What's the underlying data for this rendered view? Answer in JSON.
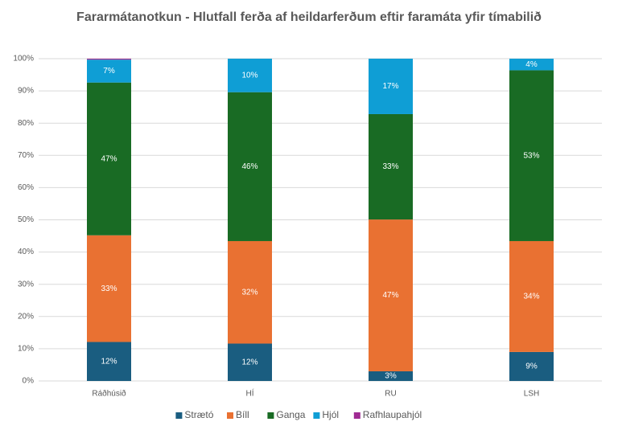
{
  "chart_data": {
    "type": "stacked_bar",
    "title": "Fararmátanotkun - Hlutfall ferða af heildarferðum eftir faramáta yfir tímabilið",
    "categories": [
      "Ráðhúsið",
      "HÍ",
      "RU",
      "LSH"
    ],
    "series": [
      {
        "name": "Strætó",
        "color": "#1a5d80",
        "values": [
          12.1,
          11.6,
          3.0,
          9.0
        ],
        "value_labels": [
          "12%",
          "12%",
          "3%",
          "9%"
        ]
      },
      {
        "name": "Bíll",
        "color": "#e97132",
        "values": [
          33.1,
          31.8,
          47.1,
          34.4
        ],
        "value_labels": [
          "33%",
          "32%",
          "47%",
          "34%"
        ]
      },
      {
        "name": "Ganga",
        "color": "#196b24",
        "values": [
          47.4,
          46.2,
          32.7,
          53.0
        ],
        "value_labels": [
          "47%",
          "46%",
          "33%",
          "53%"
        ]
      },
      {
        "name": "Hjól",
        "color": "#0f9ed5",
        "values": [
          7.1,
          10.4,
          17.2,
          3.6
        ],
        "value_labels": [
          "7%",
          "10%",
          "17%",
          "4%"
        ]
      },
      {
        "name": "Rafhlaupahjól",
        "color": "#a02b93",
        "values": [
          0.3,
          0,
          0,
          0
        ]
      }
    ],
    "ylim": [
      0,
      100
    ],
    "yticks": [
      {
        "value": 0,
        "label": "0%"
      },
      {
        "value": 10,
        "label": "10%"
      },
      {
        "value": 20,
        "label": "20%"
      },
      {
        "value": 30,
        "label": "30%"
      },
      {
        "value": 40,
        "label": "40%"
      },
      {
        "value": 50,
        "label": "50%"
      },
      {
        "value": 60,
        "label": "60%"
      },
      {
        "value": 70,
        "label": "70%"
      },
      {
        "value": 80,
        "label": "80%"
      },
      {
        "value": 90,
        "label": "90%"
      },
      {
        "value": 100,
        "label": "100%"
      }
    ],
    "grid": true,
    "legend": "bottom"
  }
}
